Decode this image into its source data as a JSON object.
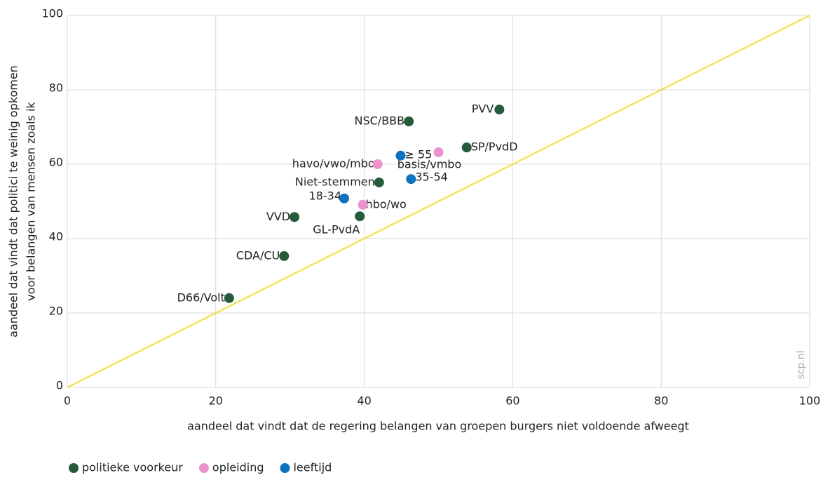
{
  "chart_data": {
    "type": "scatter",
    "x_label": "aandeel dat vindt dat de regering belangen van groepen burgers niet voldoende afweegt",
    "y_label": [
      "aandeel dat vindt dat politici te weinig opkomen",
      "voor belangen van mensen zoals ik"
    ],
    "watermark": "scp.nl",
    "xlim": [
      0,
      100
    ],
    "xticks": [
      0,
      20,
      40,
      60,
      80,
      100
    ],
    "ylim": [
      0,
      100
    ],
    "yticks": [
      0,
      20,
      40,
      60,
      80,
      100
    ],
    "grid": true,
    "legend": "bottom",
    "reference_line": {
      "color": "#ebe03a"
    },
    "series": [
      {
        "name": "politieke voorkeur",
        "color": "#255a3b",
        "labels": [
          "PVV",
          "NSC/BBB",
          "SP/PvdD",
          "Niet-stemmen",
          "GL-PvdA",
          "VVD",
          "CDA/CU",
          "D66/Volt"
        ],
        "x": [
          58.2,
          46.0,
          53.8,
          42.0,
          39.4,
          30.6,
          29.2,
          21.8
        ],
        "values": [
          74.7,
          71.5,
          64.5,
          55.1,
          46.0,
          45.8,
          35.3,
          24.0
        ]
      },
      {
        "name": "opleiding",
        "color": "#ec93cf",
        "labels": [
          "havo/vwo/mbo",
          "basis/vmbo",
          "hbo/wo"
        ],
        "x": [
          41.8,
          50.0,
          39.8
        ],
        "values": [
          60.0,
          63.2,
          49.1
        ]
      },
      {
        "name": "leeftijd",
        "color": "#0d73bf",
        "labels": [
          "≥ 55",
          "35-54",
          "18-34"
        ],
        "x": [
          44.9,
          46.3,
          37.3
        ],
        "values": [
          62.3,
          56.0,
          50.8
        ]
      }
    ]
  }
}
